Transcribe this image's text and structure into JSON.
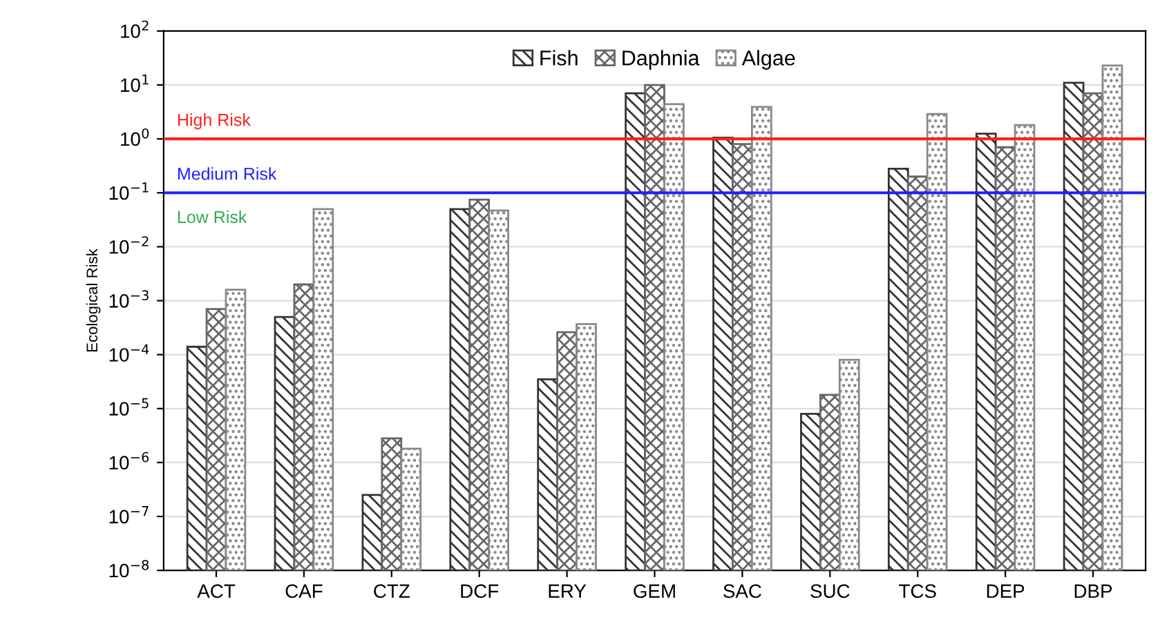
{
  "chart_data": {
    "type": "bar",
    "ylabel": "Ecological Risk",
    "categories": [
      "ACT",
      "CAF",
      "CTZ",
      "DCF",
      "ERY",
      "GEM",
      "SAC",
      "SUC",
      "TCS",
      "DEP",
      "DBP"
    ],
    "series": [
      {
        "name": "Fish",
        "color": "#333333",
        "values": [
          0.00014,
          0.0005,
          2.5e-07,
          0.05,
          3.5e-05,
          7,
          1.05,
          8e-06,
          0.28,
          1.25,
          11
        ]
      },
      {
        "name": "Daphnia",
        "color": "#666666",
        "values": [
          0.0007,
          0.002,
          2.8e-06,
          0.075,
          0.00026,
          10,
          0.8,
          1.8e-05,
          0.2,
          0.7,
          7
        ]
      },
      {
        "name": "Algae",
        "color": "#888888",
        "values": [
          0.0016,
          0.05,
          1.8e-06,
          0.047,
          0.00037,
          4.4,
          3.9,
          8e-05,
          2.9,
          1.8,
          23
        ]
      }
    ],
    "log": "y",
    "ylim": [
      1e-08,
      100
    ],
    "yticks": [
      {
        "value": 1e-08,
        "label": "10$^{−8}$"
      },
      {
        "value": 1e-07,
        "label": "10$^{−7}$"
      },
      {
        "value": 1e-06,
        "label": "10$^{−6}$"
      },
      {
        "value": 1e-05,
        "label": "10$^{−5}$"
      },
      {
        "value": 0.0001,
        "label": "10$^{−4}$"
      },
      {
        "value": 0.001,
        "label": "10$^{−3}$"
      },
      {
        "value": 0.01,
        "label": "10$^{−2}$"
      },
      {
        "value": 0.1,
        "label": "10$^{−1}$"
      },
      {
        "value": 1,
        "label": "10$^{0}$"
      },
      {
        "value": 10,
        "label": "10$^{1}$"
      },
      {
        "value": 100,
        "label": "10$^{2}$"
      }
    ],
    "ref_lines": [
      {
        "axis": "y",
        "value": 1,
        "label": "High Risk",
        "color": "#ff2020"
      },
      {
        "axis": "y",
        "value": 0.1,
        "label": "Medium Risk",
        "color": "#2020ff"
      }
    ],
    "annotations": [
      "Low Risk"
    ],
    "grid": "y",
    "legend": "top"
  }
}
